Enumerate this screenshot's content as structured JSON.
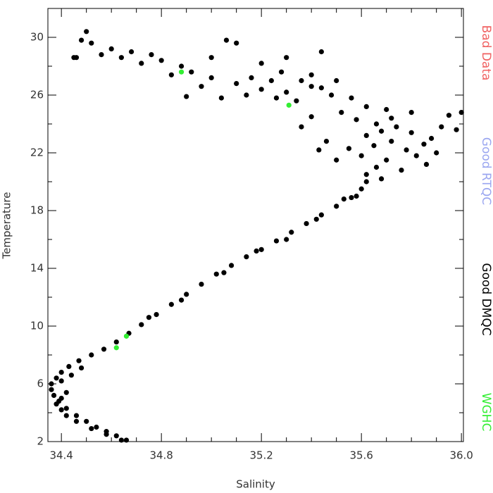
{
  "chart_data": {
    "type": "scatter",
    "x_label": "Salinity",
    "y_label": "Temperature",
    "xlim": [
      34.346,
      36.008
    ],
    "ylim": [
      2,
      32
    ],
    "xticks": [
      34.4,
      34.8,
      35.2,
      35.6,
      {
        "value": 36,
        "label": "36.0"
      }
    ],
    "yticks": [
      2,
      6,
      10,
      14,
      18,
      22,
      26,
      30
    ],
    "xminorticks": [
      34.5,
      34.6,
      34.7,
      34.9,
      35.0,
      35.1,
      35.3,
      35.4,
      35.5,
      35.7,
      35.8,
      35.9
    ],
    "yminorticks": [
      4,
      8,
      12,
      16,
      20,
      24,
      28
    ],
    "series": [
      {
        "name": "Bad Data",
        "color": "#f06060",
        "x": [],
        "y": []
      },
      {
        "name": "Good RTQC",
        "color": "#9aa6f0",
        "x": [],
        "y": []
      },
      {
        "name": "Good DMQC",
        "color": "#000000",
        "x": [
          34.66,
          34.62,
          34.58,
          34.54,
          34.5,
          34.46,
          34.42,
          34.39,
          34.37,
          34.36,
          34.36,
          34.38,
          34.4,
          34.43,
          34.47,
          34.52,
          34.57,
          34.62,
          34.67,
          34.72,
          34.78,
          34.84,
          34.9,
          34.96,
          35.02,
          35.08,
          35.14,
          35.2,
          35.26,
          35.32,
          35.38,
          35.44,
          35.5,
          35.56,
          35.6,
          35.62,
          34.64,
          34.58,
          34.52,
          34.46,
          34.42,
          34.4,
          34.38,
          34.4,
          34.42,
          34.4,
          34.44,
          34.48,
          34.75,
          34.88,
          35.05,
          35.18,
          35.3,
          35.42,
          35.53,
          35.58,
          35.62,
          35.66,
          35.7,
          35.6,
          35.55,
          35.65,
          35.72,
          35.78,
          35.82,
          35.85,
          35.8,
          35.74,
          35.66,
          35.58,
          35.52,
          35.62,
          35.7,
          35.56,
          35.48,
          35.44,
          35.5,
          35.4,
          35.46,
          35.43,
          35.5,
          35.62,
          35.68,
          35.88,
          35.92,
          35.95,
          36.0,
          35.98,
          35.9,
          35.86,
          35.76,
          35.68,
          35.72,
          35.8,
          35.36,
          35.4,
          35.34,
          35.3,
          35.26,
          35.2,
          35.14,
          35.1,
          35.04,
          35.0,
          34.96,
          34.92,
          34.88,
          34.84,
          34.8,
          34.76,
          34.72,
          34.68,
          34.64,
          34.6,
          34.56,
          34.52,
          34.5,
          34.48,
          34.46,
          34.45,
          35.06,
          35.1,
          35.2,
          35.28,
          35.36,
          35.44,
          35.3,
          34.9,
          35.0,
          35.16,
          35.4,
          35.24
        ],
        "y": [
          2.1,
          2.4,
          2.7,
          3.0,
          3.4,
          3.8,
          4.3,
          4.8,
          5.2,
          5.6,
          6.0,
          6.4,
          6.8,
          7.2,
          7.6,
          8.0,
          8.4,
          8.9,
          9.5,
          10.1,
          10.8,
          11.5,
          12.2,
          12.9,
          13.6,
          14.2,
          14.8,
          15.3,
          15.9,
          16.5,
          17.1,
          17.7,
          18.3,
          18.9,
          19.5,
          20.0,
          2.1,
          2.5,
          2.9,
          3.4,
          3.8,
          4.2,
          4.6,
          5.0,
          5.4,
          6.2,
          6.6,
          7.1,
          10.6,
          11.8,
          13.7,
          15.2,
          16.0,
          17.4,
          18.8,
          19.0,
          20.5,
          21,
          21.5,
          21.8,
          22.3,
          22.5,
          22.8,
          22.2,
          21.8,
          22.6,
          23.4,
          23.8,
          24.0,
          24.3,
          24.8,
          25.2,
          25.0,
          25.8,
          26.0,
          26.5,
          27.0,
          27.4,
          22.8,
          22.2,
          21.5,
          23.2,
          23.5,
          23.0,
          23.8,
          24.6,
          24.8,
          23.6,
          22.0,
          21.2,
          20.8,
          20.2,
          24.4,
          24.8,
          23.8,
          24.5,
          25.6,
          26.2,
          25.8,
          26.4,
          26.0,
          26.8,
          25.8,
          27.2,
          26.6,
          27.6,
          28.0,
          27.4,
          28.4,
          28.8,
          28.2,
          29.0,
          28.6,
          29.2,
          28.8,
          29.6,
          30.4,
          29.8,
          28.6,
          28.6,
          29.8,
          29.6,
          28.2,
          27.6,
          27.0,
          29.0,
          28.6,
          25.9,
          28.6,
          27.2,
          26.6,
          27.0
        ]
      },
      {
        "name": "WGHC",
        "color": "#33ee33",
        "x": [
          35.31,
          34.88,
          34.62,
          34.66
        ],
        "y": [
          25.3,
          27.6,
          8.5,
          9.3
        ]
      }
    ]
  }
}
